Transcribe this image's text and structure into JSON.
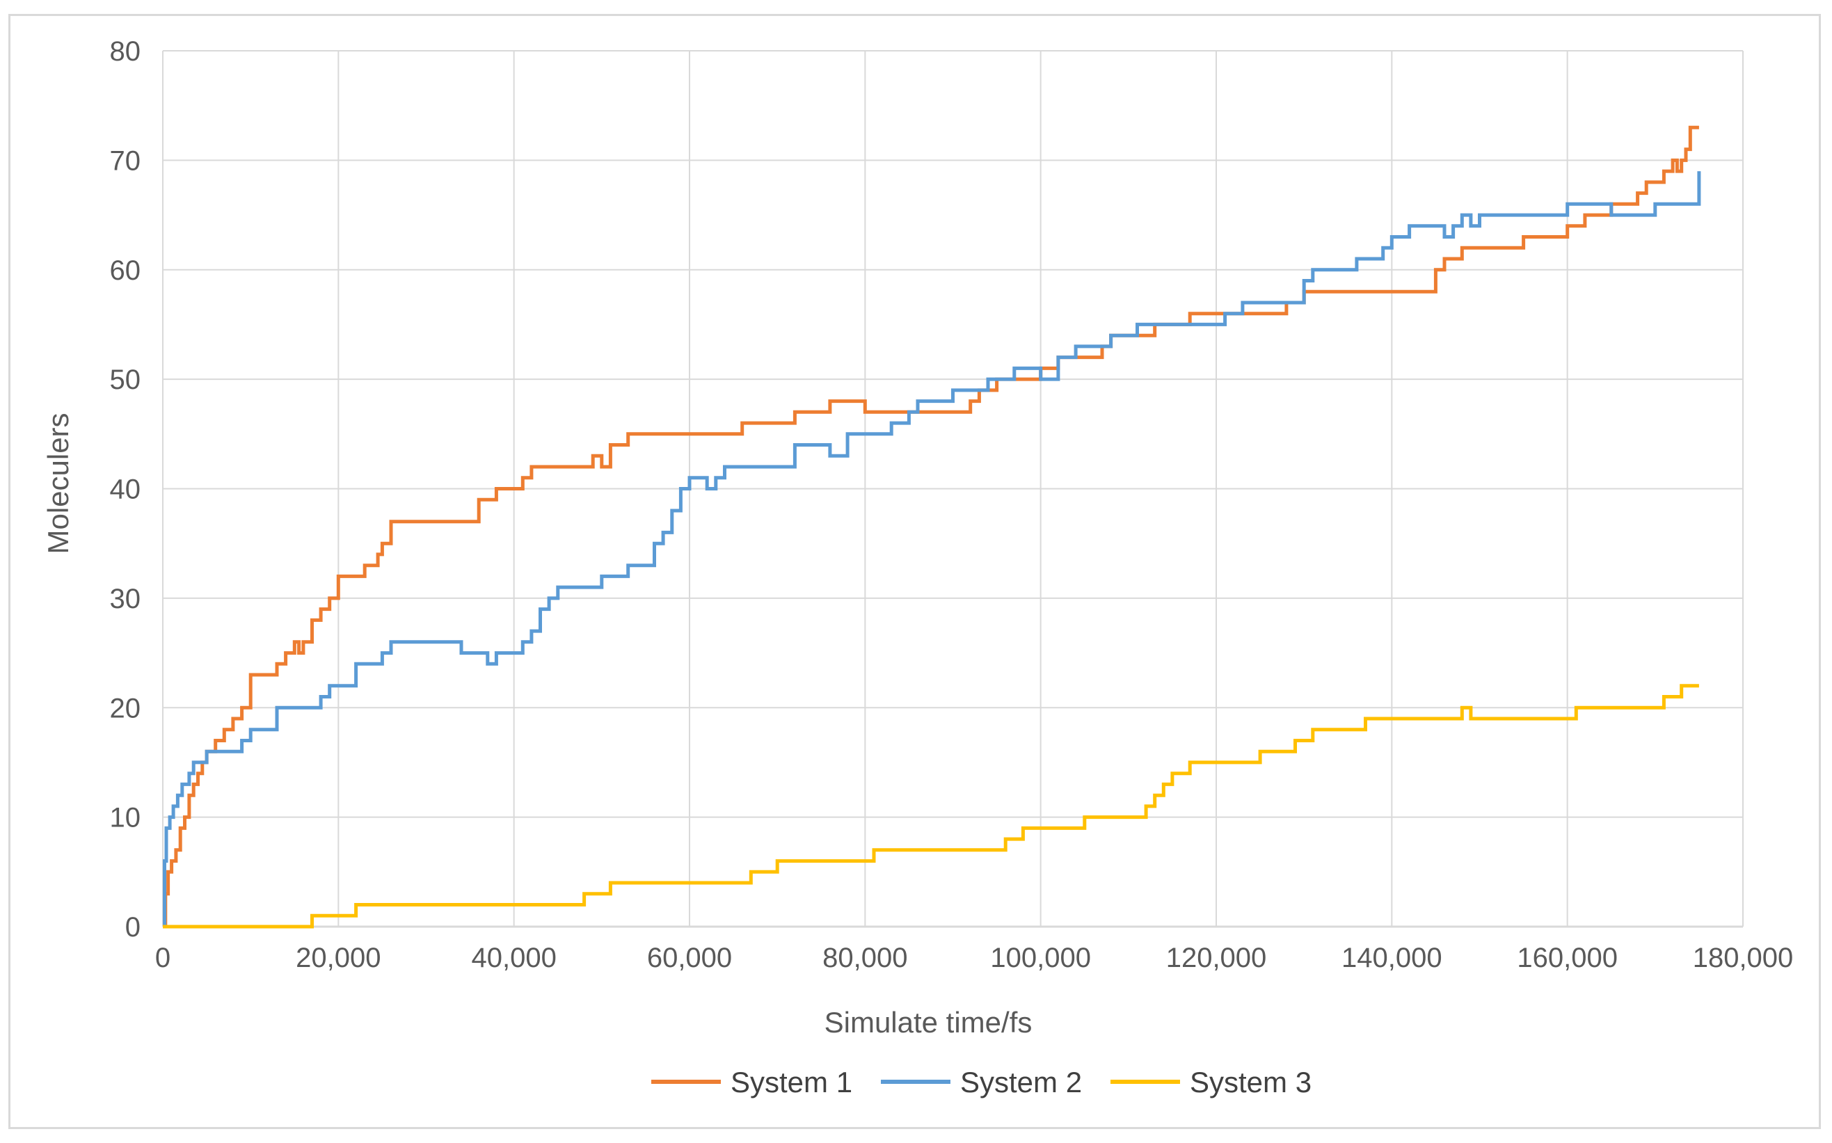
{
  "chart_data": {
    "type": "line",
    "title": "",
    "xlabel": "Simulate time/fs",
    "ylabel": "Moleculers",
    "xlim": [
      0,
      180000
    ],
    "ylim": [
      0,
      80
    ],
    "x_ticks": [
      0,
      20000,
      40000,
      60000,
      80000,
      100000,
      120000,
      140000,
      160000,
      180000
    ],
    "x_tick_labels": [
      "0",
      "20,000",
      "40,000",
      "60,000",
      "80,000",
      "100,000",
      "120,000",
      "140,000",
      "160,000",
      "180,000"
    ],
    "y_ticks": [
      0,
      10,
      20,
      30,
      40,
      50,
      60,
      70,
      80
    ],
    "y_tick_labels": [
      "0",
      "10",
      "20",
      "30",
      "40",
      "50",
      "60",
      "70",
      "80"
    ],
    "grid": true,
    "legend_position": "bottom",
    "series": [
      {
        "name": "System 1",
        "color": "#ED7D31",
        "x": [
          0,
          300,
          600,
          1000,
          1500,
          2000,
          2500,
          3000,
          3500,
          4000,
          4500,
          5000,
          6000,
          7000,
          8000,
          9000,
          10000,
          12000,
          13000,
          14000,
          15000,
          15500,
          16000,
          17000,
          18000,
          19000,
          20000,
          22000,
          23000,
          24000,
          24500,
          25000,
          26000,
          30000,
          35000,
          36000,
          38000,
          40000,
          41000,
          42000,
          48000,
          49000,
          50000,
          51000,
          52000,
          53000,
          54000,
          56000,
          60000,
          64000,
          66000,
          70000,
          72000,
          75000,
          76000,
          80000,
          85000,
          90000,
          92000,
          93000,
          95000,
          98000,
          100000,
          102000,
          105000,
          107000,
          108000,
          110000,
          113000,
          115000,
          117000,
          120000,
          125000,
          128000,
          130000,
          135000,
          140000,
          144000,
          145000,
          146000,
          148000,
          150000,
          155000,
          160000,
          162000,
          164000,
          165000,
          166000,
          168000,
          169000,
          170000,
          171000,
          172000,
          172500,
          173000,
          173500,
          174000,
          175000
        ],
        "values": [
          0,
          3,
          5,
          6,
          7,
          9,
          10,
          12,
          13,
          14,
          15,
          16,
          17,
          18,
          19,
          20,
          23,
          23,
          24,
          25,
          26,
          25,
          26,
          28,
          29,
          30,
          32,
          32,
          33,
          33,
          34,
          35,
          37,
          37,
          37,
          39,
          40,
          40,
          41,
          42,
          42,
          43,
          42,
          44,
          44,
          45,
          45,
          45,
          45,
          45,
          46,
          46,
          47,
          47,
          48,
          47,
          47,
          47,
          48,
          49,
          50,
          50,
          51,
          52,
          52,
          53,
          54,
          54,
          55,
          55,
          56,
          56,
          56,
          57,
          58,
          58,
          58,
          58,
          60,
          61,
          62,
          62,
          63,
          64,
          65,
          65,
          66,
          66,
          67,
          68,
          68,
          69,
          70,
          69,
          70,
          71,
          73,
          73
        ]
      },
      {
        "name": "System 2",
        "color": "#5B9BD5",
        "x": [
          0,
          200,
          400,
          800,
          1200,
          1700,
          2200,
          3000,
          3500,
          4000,
          5000,
          6000,
          9000,
          10000,
          11000,
          13000,
          16000,
          18000,
          19000,
          20000,
          22000,
          25000,
          26000,
          30000,
          33000,
          34000,
          36000,
          37000,
          38000,
          40000,
          41000,
          42000,
          43000,
          44000,
          45000,
          48000,
          50000,
          52000,
          53000,
          55000,
          56000,
          57000,
          58000,
          59000,
          60000,
          62000,
          63000,
          64000,
          70000,
          72000,
          75000,
          76000,
          78000,
          80000,
          83000,
          85000,
          86000,
          90000,
          92000,
          94000,
          96000,
          97000,
          99000,
          100000,
          102000,
          104000,
          106000,
          108000,
          110000,
          111000,
          114000,
          118000,
          121000,
          123000,
          126000,
          129000,
          130000,
          131000,
          134000,
          136000,
          139000,
          140000,
          142000,
          143000,
          146000,
          147000,
          148000,
          149000,
          150000,
          151000,
          153000,
          158000,
          160000,
          162000,
          164000,
          165000,
          170000,
          173000,
          175000
        ],
        "values": [
          0,
          6,
          9,
          10,
          11,
          12,
          13,
          14,
          15,
          15,
          16,
          16,
          17,
          18,
          18,
          20,
          20,
          21,
          22,
          22,
          24,
          25,
          26,
          26,
          26,
          25,
          25,
          24,
          25,
          25,
          26,
          27,
          29,
          30,
          31,
          31,
          32,
          32,
          33,
          33,
          35,
          36,
          38,
          40,
          41,
          40,
          41,
          42,
          42,
          44,
          44,
          43,
          45,
          45,
          46,
          47,
          48,
          49,
          49,
          50,
          50,
          51,
          51,
          50,
          52,
          53,
          53,
          54,
          54,
          55,
          55,
          55,
          56,
          57,
          57,
          57,
          59,
          60,
          60,
          61,
          62,
          63,
          64,
          64,
          63,
          64,
          65,
          64,
          65,
          65,
          65,
          65,
          66,
          66,
          66,
          65,
          66,
          66,
          69
        ]
      },
      {
        "name": "System 3",
        "color": "#FFC000",
        "x": [
          0,
          16000,
          17000,
          21000,
          22000,
          30000,
          40000,
          47000,
          48000,
          50000,
          51000,
          60000,
          66000,
          67000,
          69000,
          70000,
          75000,
          80000,
          81000,
          90000,
          95000,
          96000,
          98000,
          99000,
          103000,
          105000,
          108000,
          110000,
          112000,
          113000,
          114000,
          115000,
          116000,
          117000,
          120000,
          124000,
          125000,
          128000,
          129000,
          130000,
          131000,
          133000,
          136000,
          137000,
          140000,
          145000,
          147000,
          148000,
          149000,
          150000,
          155000,
          160000,
          161000,
          165000,
          170000,
          171000,
          172000,
          173000,
          175000
        ],
        "values": [
          0,
          0,
          1,
          1,
          2,
          2,
          2,
          2,
          3,
          3,
          4,
          4,
          4,
          5,
          5,
          6,
          6,
          6,
          7,
          7,
          7,
          8,
          9,
          9,
          9,
          10,
          10,
          10,
          11,
          12,
          13,
          14,
          14,
          15,
          15,
          15,
          16,
          16,
          17,
          17,
          18,
          18,
          18,
          19,
          19,
          19,
          19,
          20,
          19,
          19,
          19,
          19,
          20,
          20,
          20,
          21,
          21,
          22,
          22
        ]
      }
    ]
  }
}
